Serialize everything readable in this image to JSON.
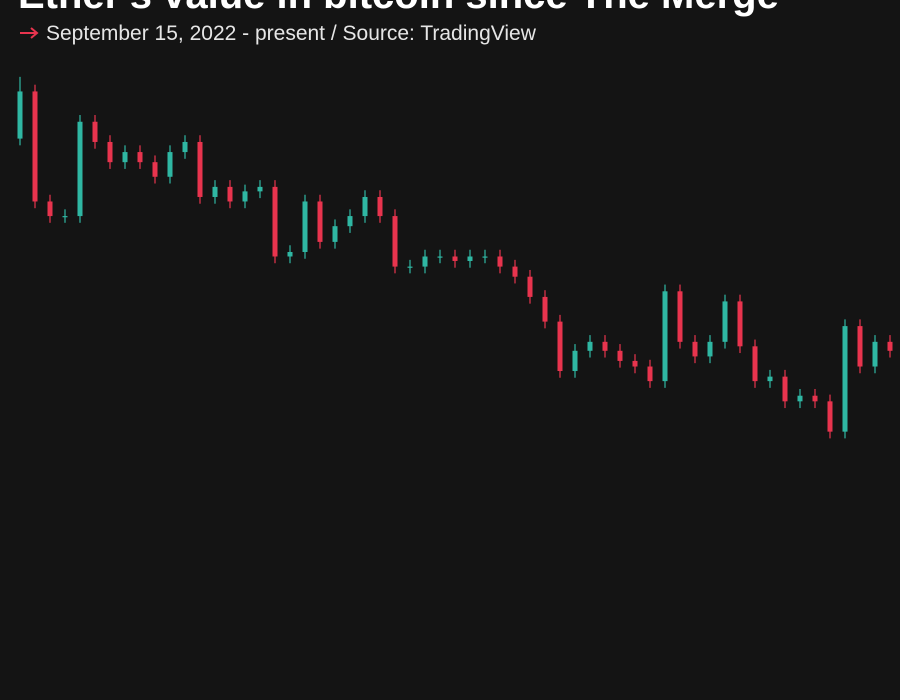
{
  "chart_data": {
    "type": "candlestick",
    "title": "Ether's value in bitcoin since The Merge",
    "subtitle": "September 15, 2022 - present / Source: TradingView",
    "up_color": "#2fb7a3",
    "down_color": "#e8344e",
    "ylim": [
      0.026,
      0.083
    ],
    "open": [
      0.076,
      0.0802,
      0.0704,
      0.0691,
      0.0691,
      0.0775,
      0.0757,
      0.0739,
      0.0748,
      0.0739,
      0.0726,
      0.0748,
      0.0757,
      0.0708,
      0.0717,
      0.0704,
      0.0713,
      0.0717,
      0.0655,
      0.0659,
      0.0704,
      0.0668,
      0.0682,
      0.0691,
      0.0708,
      0.0691,
      0.0646,
      0.0646,
      0.0655,
      0.0655,
      0.0651,
      0.0655,
      0.0655,
      0.0646,
      0.0637,
      0.0619,
      0.0597,
      0.0553,
      0.0571,
      0.0579,
      0.0571,
      0.0562,
      0.0557,
      0.0544,
      0.0624,
      0.0579,
      0.0566,
      0.0579,
      0.0615,
      0.0575,
      0.0544,
      0.0548,
      0.0526,
      0.0531,
      0.0526,
      0.0499,
      0.0593,
      0.0557,
      0.0579
    ],
    "high": [
      0.0815,
      0.0808,
      0.071,
      0.0697,
      0.0781,
      0.0781,
      0.0763,
      0.0754,
      0.0754,
      0.0745,
      0.0754,
      0.0763,
      0.0763,
      0.0723,
      0.0723,
      0.0719,
      0.0723,
      0.0723,
      0.0665,
      0.071,
      0.071,
      0.0688,
      0.0697,
      0.0714,
      0.0714,
      0.0697,
      0.0652,
      0.0661,
      0.0661,
      0.0661,
      0.0661,
      0.0661,
      0.0661,
      0.0652,
      0.0643,
      0.0625,
      0.0603,
      0.0577,
      0.0585,
      0.0585,
      0.0577,
      0.0568,
      0.0563,
      0.063,
      0.063,
      0.0585,
      0.0585,
      0.0621,
      0.0621,
      0.0581,
      0.0554,
      0.0554,
      0.0537,
      0.0537,
      0.0532,
      0.0599,
      0.0599,
      0.0585,
      0.0585
    ],
    "low": [
      0.0754,
      0.0698,
      0.0685,
      0.0685,
      0.0685,
      0.0751,
      0.0733,
      0.0733,
      0.0733,
      0.072,
      0.072,
      0.0742,
      0.0702,
      0.0702,
      0.0698,
      0.0698,
      0.0707,
      0.0649,
      0.0649,
      0.0653,
      0.0662,
      0.0662,
      0.0676,
      0.0685,
      0.0685,
      0.064,
      0.064,
      0.064,
      0.0649,
      0.0645,
      0.0645,
      0.0649,
      0.064,
      0.0631,
      0.0613,
      0.0591,
      0.0547,
      0.0547,
      0.0565,
      0.0565,
      0.0556,
      0.0551,
      0.0538,
      0.0538,
      0.0573,
      0.056,
      0.056,
      0.0573,
      0.0569,
      0.0538,
      0.0538,
      0.052,
      0.052,
      0.052,
      0.0493,
      0.0493,
      0.0551,
      0.0551,
      0.0565
    ],
    "close": [
      0.0802,
      0.0704,
      0.0691,
      0.0691,
      0.0775,
      0.0757,
      0.0739,
      0.0748,
      0.0739,
      0.0726,
      0.0748,
      0.0757,
      0.0708,
      0.0717,
      0.0704,
      0.0713,
      0.0717,
      0.0655,
      0.0659,
      0.0704,
      0.0668,
      0.0682,
      0.0691,
      0.0708,
      0.0691,
      0.0646,
      0.0646,
      0.0655,
      0.0655,
      0.0651,
      0.0655,
      0.0655,
      0.0646,
      0.0637,
      0.0619,
      0.0597,
      0.0553,
      0.0571,
      0.0579,
      0.0571,
      0.0562,
      0.0557,
      0.0544,
      0.0624,
      0.0579,
      0.0566,
      0.0579,
      0.0615,
      0.0575,
      0.0544,
      0.0548,
      0.0526,
      0.0531,
      0.0526,
      0.0499,
      0.0593,
      0.0557,
      0.0579,
      0.0571
    ]
  }
}
